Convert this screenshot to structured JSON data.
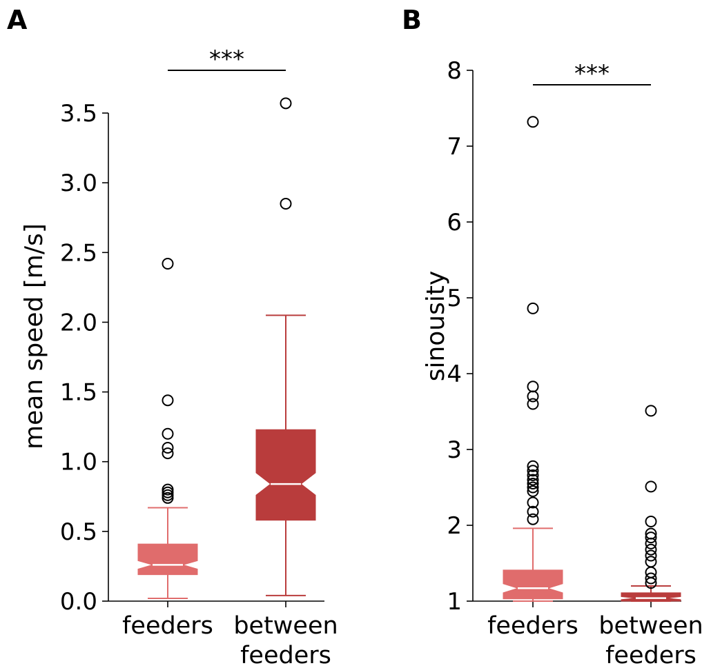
{
  "chart_data": [
    {
      "panel_label": "A",
      "type": "box",
      "ylabel": "mean speed [m/s]",
      "ylim": [
        0,
        3.6
      ],
      "yticks": [
        0.0,
        0.5,
        1.0,
        1.5,
        2.0,
        2.5,
        3.0,
        3.5
      ],
      "ytick_labels": [
        "0.0",
        "0.5",
        "1.0",
        "1.5",
        "2.0",
        "2.5",
        "3.0",
        "3.5"
      ],
      "categories": [
        "feeders",
        "between\nfeeders"
      ],
      "category_lines": [
        [
          "feeders"
        ],
        [
          "between",
          "feeders"
        ]
      ],
      "significance": {
        "label": "***",
        "from": 0,
        "to": 1
      },
      "notched": true,
      "boxes": [
        {
          "name": "feeders",
          "color": "#e06c6c",
          "whisker_low": 0.02,
          "q1": 0.19,
          "median": 0.26,
          "q3": 0.41,
          "whisker_high": 0.67,
          "notch_low": 0.23,
          "notch_high": 0.29,
          "outliers": [
            0.74,
            0.76,
            0.78,
            0.8,
            1.06,
            1.1,
            1.2,
            1.44,
            2.42
          ]
        },
        {
          "name": "between feeders",
          "color": "#b93c3c",
          "whisker_low": 0.04,
          "q1": 0.58,
          "median": 0.84,
          "q3": 1.23,
          "whisker_high": 2.05,
          "notch_low": 0.76,
          "notch_high": 0.92,
          "outliers": [
            2.85,
            3.57
          ]
        }
      ]
    },
    {
      "panel_label": "B",
      "type": "box",
      "ylabel": "sinousity",
      "ylim": [
        1,
        8
      ],
      "yticks": [
        1,
        2,
        3,
        4,
        5,
        6,
        7,
        8
      ],
      "ytick_labels": [
        "1",
        "2",
        "3",
        "4",
        "5",
        "6",
        "7",
        "8"
      ],
      "categories": [
        "feeders",
        "between\nfeeders"
      ],
      "category_lines": [
        [
          "feeders"
        ],
        [
          "between",
          "feeders"
        ]
      ],
      "significance": {
        "label": "***",
        "from": 0,
        "to": 1
      },
      "notched": true,
      "boxes": [
        {
          "name": "feeders",
          "color": "#e06c6c",
          "whisker_low": 1.0,
          "q1": 1.03,
          "median": 1.17,
          "q3": 1.41,
          "whisker_high": 1.96,
          "notch_low": 1.11,
          "notch_high": 1.23,
          "outliers": [
            2.08,
            2.18,
            2.3,
            2.45,
            2.5,
            2.55,
            2.6,
            2.66,
            2.72,
            2.78,
            3.6,
            3.7,
            3.83,
            4.86,
            7.32
          ]
        },
        {
          "name": "between feeders",
          "color": "#b93c3c",
          "whisker_low": 1.0,
          "q1": 1.0,
          "median": 1.04,
          "q3": 1.11,
          "whisker_high": 1.2,
          "notch_low": 1.02,
          "notch_high": 1.06,
          "outliers": [
            1.24,
            1.3,
            1.38,
            1.52,
            1.6,
            1.68,
            1.76,
            1.84,
            1.89,
            2.05,
            2.51,
            3.51
          ]
        }
      ]
    }
  ]
}
